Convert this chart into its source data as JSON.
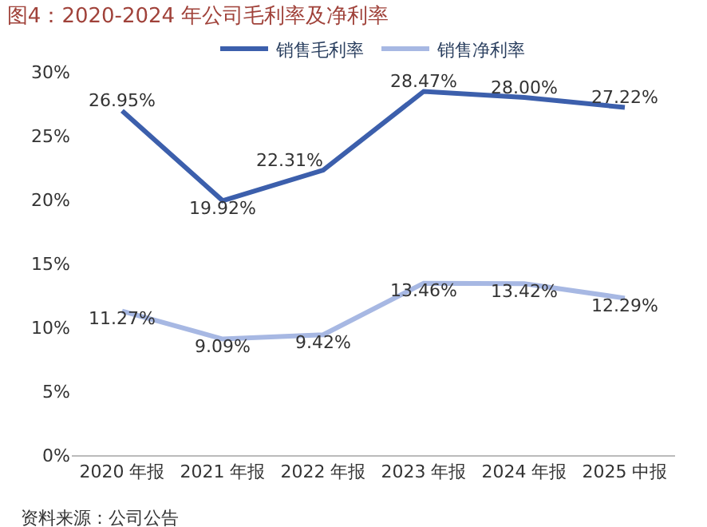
{
  "chart_data": {
    "type": "line",
    "title": "图4：2020-2024 年公司毛利率及净利率",
    "categories": [
      "2020 年报",
      "2021 年报",
      "2022 年报",
      "2023 年报",
      "2024 年报",
      "2025 中报"
    ],
    "series": [
      {
        "name": "销售毛利率",
        "color": "#3c5fac",
        "values": [
          26.95,
          19.92,
          22.31,
          28.47,
          28.0,
          27.22
        ],
        "value_labels": [
          "26.95%",
          "19.92%",
          "22.31%",
          "28.47%",
          "28.00%",
          "27.22%"
        ]
      },
      {
        "name": "销售净利率",
        "color": "#a7b8e3",
        "values": [
          11.27,
          9.09,
          9.42,
          13.46,
          13.42,
          12.29
        ],
        "value_labels": [
          "11.27%",
          "9.09%",
          "9.42%",
          "13.46%",
          "13.42%",
          "12.29%"
        ]
      }
    ],
    "ylim": [
      0,
      30
    ],
    "yticks": [
      {
        "value": 0,
        "label": "0%"
      },
      {
        "value": 5,
        "label": "5%"
      },
      {
        "value": 10,
        "label": "10%"
      },
      {
        "value": 15,
        "label": "15%"
      },
      {
        "value": 20,
        "label": "20%"
      },
      {
        "value": 25,
        "label": "25%"
      },
      {
        "value": 30,
        "label": "30%"
      }
    ],
    "grid": false,
    "legend": "top",
    "marker": "none",
    "line_style": "solid",
    "annotations": [
      "资料来源：公司公告"
    ]
  }
}
